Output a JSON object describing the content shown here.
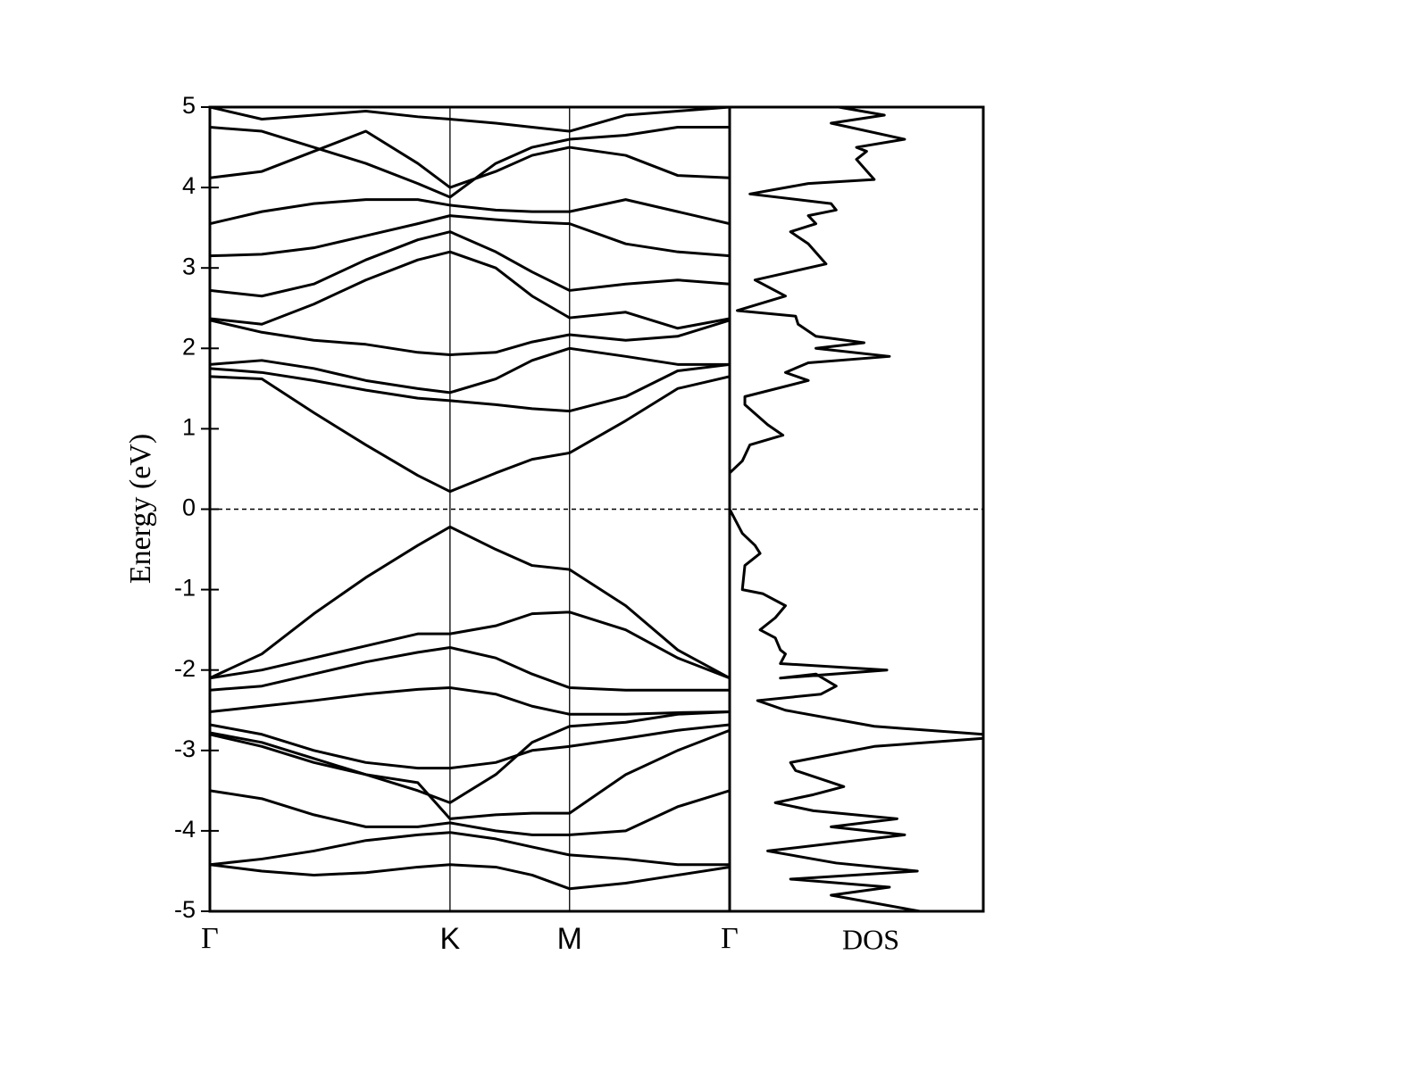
{
  "chart_data": [
    {
      "type": "line",
      "ylabel": "Energy (eV)",
      "color": "#000000",
      "ylim": [
        -5,
        5
      ],
      "yticks": [
        -5,
        -4,
        -3,
        -2,
        -1,
        0,
        1,
        2,
        3,
        4,
        5
      ],
      "xlim": [
        0,
        1
      ],
      "xticks": [
        {
          "value": 0,
          "label": "Γ"
        },
        {
          "value": 0.462,
          "label": "K"
        },
        {
          "value": 0.692,
          "label": "M"
        },
        {
          "value": 1,
          "label": "Γ"
        }
      ],
      "hline": 0,
      "x": [
        0,
        0.1,
        0.2,
        0.3,
        0.4,
        0.462,
        0.55,
        0.62,
        0.692,
        0.8,
        0.9,
        1
      ],
      "series": [
        {
          "values": [
            1.65,
            1.62,
            1.2,
            0.8,
            0.42,
            0.22,
            0.45,
            0.62,
            0.7,
            1.1,
            1.5,
            1.65
          ]
        },
        {
          "values": [
            -2.1,
            -1.8,
            -1.3,
            -0.85,
            -0.45,
            -0.22,
            -0.5,
            -0.7,
            -0.75,
            -1.2,
            -1.75,
            -2.1
          ]
        },
        {
          "values": [
            -2.1,
            -2.0,
            -1.85,
            -1.7,
            -1.55,
            -1.55,
            -1.45,
            -1.3,
            -1.28,
            -1.5,
            -1.85,
            -2.1
          ]
        },
        {
          "values": [
            -2.25,
            -2.2,
            -2.05,
            -1.9,
            -1.78,
            -1.72,
            -1.85,
            -2.05,
            -2.22,
            -2.25,
            -2.25,
            -2.25
          ]
        },
        {
          "values": [
            -2.52,
            -2.45,
            -2.38,
            -2.3,
            -2.24,
            -2.22,
            -2.3,
            -2.45,
            -2.55,
            -2.55,
            -2.53,
            -2.52
          ]
        },
        {
          "values": [
            1.75,
            1.7,
            1.6,
            1.48,
            1.38,
            1.35,
            1.3,
            1.25,
            1.22,
            1.4,
            1.72,
            1.8
          ]
        },
        {
          "values": [
            1.8,
            1.85,
            1.75,
            1.6,
            1.5,
            1.45,
            1.62,
            1.85,
            2.0,
            1.9,
            1.8,
            1.8
          ]
        },
        {
          "values": [
            2.35,
            2.2,
            2.1,
            2.05,
            1.95,
            1.92,
            1.95,
            2.08,
            2.17,
            2.1,
            2.15,
            2.35
          ]
        },
        {
          "values": [
            2.37,
            2.3,
            2.55,
            2.85,
            3.1,
            3.2,
            3.0,
            2.65,
            2.38,
            2.45,
            2.25,
            2.37
          ]
        },
        {
          "values": [
            2.72,
            2.65,
            2.8,
            3.1,
            3.35,
            3.45,
            3.2,
            2.95,
            2.72,
            2.8,
            2.85,
            2.8
          ]
        },
        {
          "values": [
            3.15,
            3.17,
            3.25,
            3.4,
            3.55,
            3.65,
            3.6,
            3.57,
            3.55,
            3.3,
            3.2,
            3.15
          ]
        },
        {
          "values": [
            3.55,
            3.7,
            3.8,
            3.85,
            3.85,
            3.78,
            3.72,
            3.7,
            3.7,
            3.85,
            3.7,
            3.55
          ]
        },
        {
          "values": [
            4.12,
            4.2,
            4.45,
            4.7,
            4.3,
            4.0,
            4.2,
            4.4,
            4.5,
            4.4,
            4.15,
            4.12
          ]
        },
        {
          "values": [
            4.75,
            4.7,
            4.5,
            4.3,
            4.05,
            3.88,
            4.3,
            4.5,
            4.6,
            4.65,
            4.75,
            4.75
          ]
        },
        {
          "values": [
            5.0,
            4.85,
            4.9,
            4.95,
            4.88,
            4.85,
            4.8,
            4.75,
            4.7,
            4.9,
            4.95,
            5.0
          ]
        },
        {
          "values": [
            -2.68,
            -2.8,
            -3.0,
            -3.15,
            -3.22,
            -3.22,
            -3.15,
            -3.0,
            -2.95,
            -2.85,
            -2.75,
            -2.68
          ]
        },
        {
          "values": [
            -2.78,
            -2.9,
            -3.1,
            -3.3,
            -3.5,
            -3.65,
            -3.3,
            -2.9,
            -2.7,
            -2.65,
            -2.55,
            -2.52
          ]
        },
        {
          "values": [
            -2.8,
            -2.95,
            -3.15,
            -3.3,
            -3.4,
            -3.85,
            -3.8,
            -3.78,
            -3.78,
            -3.3,
            -3.0,
            -2.75
          ]
        },
        {
          "values": [
            -3.5,
            -3.6,
            -3.8,
            -3.95,
            -3.95,
            -3.9,
            -4.0,
            -4.05,
            -4.05,
            -4.0,
            -3.7,
            -3.5
          ]
        },
        {
          "values": [
            -4.42,
            -4.35,
            -4.25,
            -4.12,
            -4.05,
            -4.02,
            -4.1,
            -4.2,
            -4.3,
            -4.35,
            -4.42,
            -4.42
          ]
        },
        {
          "values": [
            -4.42,
            -4.5,
            -4.55,
            -4.52,
            -4.45,
            -4.42,
            -4.45,
            -4.55,
            -4.72,
            -4.65,
            -4.55,
            -4.45
          ]
        }
      ]
    },
    {
      "type": "dos",
      "xlabel": "DOS",
      "color": "#000000",
      "xlim": [
        0,
        100
      ],
      "ylim": [
        -5,
        5
      ],
      "y": [
        5.0,
        4.9,
        4.8,
        4.6,
        4.5,
        4.45,
        4.35,
        4.1,
        4.05,
        3.92,
        3.8,
        3.72,
        3.65,
        3.55,
        3.45,
        3.3,
        3.05,
        2.85,
        2.65,
        2.47,
        2.4,
        2.3,
        2.15,
        2.07,
        2.0,
        1.9,
        1.82,
        1.7,
        1.6,
        1.4,
        1.3,
        1.05,
        0.92,
        0.8,
        0.6,
        0.45,
        0.0,
        -0.3,
        -0.45,
        -0.55,
        -0.7,
        -1.0,
        -1.05,
        -1.2,
        -1.35,
        -1.5,
        -1.6,
        -1.75,
        -1.8,
        -1.92,
        -2.0,
        -2.1,
        -2.05,
        -2.2,
        -2.3,
        -2.38,
        -2.5,
        -2.7,
        -2.8,
        -2.85,
        -2.95,
        -3.15,
        -3.25,
        -3.45,
        -3.55,
        -3.65,
        -3.75,
        -3.85,
        -3.95,
        -4.05,
        -4.25,
        -4.4,
        -4.5,
        -4.6,
        -4.7,
        -4.8,
        -5.0
      ],
      "values": [
        43,
        61,
        40,
        69,
        50,
        54,
        50,
        57,
        31,
        8,
        40,
        42,
        31,
        34,
        24,
        31,
        38,
        10,
        22,
        3,
        26,
        27,
        34,
        53,
        34,
        63,
        31,
        22,
        31,
        6,
        6,
        15,
        21,
        8,
        5,
        0,
        0,
        5,
        10,
        12,
        6,
        5,
        13,
        22,
        18,
        12,
        18,
        20,
        22,
        20,
        62,
        20,
        34,
        42,
        36,
        11,
        22,
        57,
        100,
        100,
        57,
        24,
        26,
        45,
        33,
        18,
        33,
        66,
        40,
        69,
        15,
        42,
        74,
        24,
        63,
        40,
        75
      ]
    }
  ]
}
